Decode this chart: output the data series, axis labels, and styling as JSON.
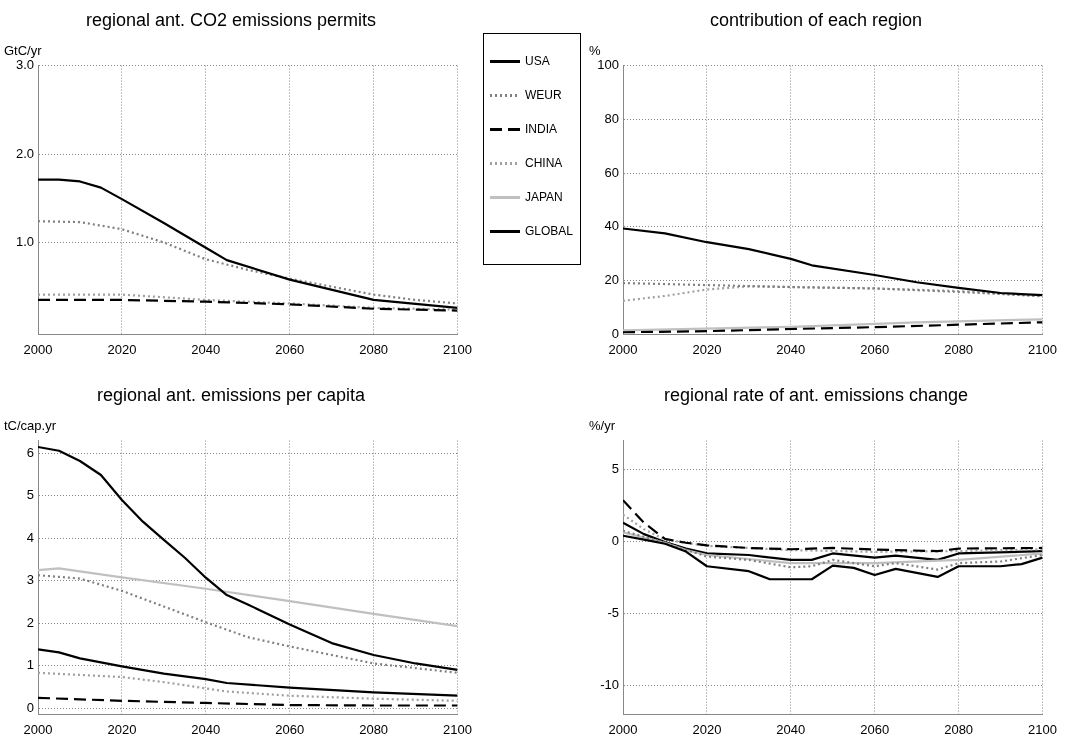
{
  "chart_data": [
    {
      "type": "line",
      "title": "regional ant. CO2 emissions permits",
      "ylabel": "GtC/yr",
      "xlim": [
        2000,
        2100
      ],
      "xticks": [
        2000,
        2020,
        2040,
        2060,
        2080,
        2100
      ],
      "ylim": [
        -0.04,
        3
      ],
      "yticks": [
        {
          "value": 1,
          "label": "1.0"
        },
        {
          "value": 2,
          "label": "2.0"
        },
        {
          "value": 3,
          "label": "3.0"
        }
      ],
      "grid": true,
      "series": [
        {
          "color": "#000000",
          "line_style": "solid",
          "x": [
            2000,
            2005,
            2010,
            2015,
            2020,
            2030,
            2040,
            2045,
            2060,
            2080,
            2100
          ],
          "values": [
            1.71,
            1.71,
            1.69,
            1.62,
            1.49,
            1.22,
            0.94,
            0.8,
            0.58,
            0.35,
            0.26
          ]
        },
        {
          "color": "#808080",
          "line_style": "dotted",
          "x": [
            2000,
            2010,
            2020,
            2030,
            2040,
            2050,
            2060,
            2070,
            2080,
            2090,
            2100
          ],
          "values": [
            1.24,
            1.23,
            1.15,
            1.0,
            0.81,
            0.69,
            0.59,
            0.5,
            0.41,
            0.35,
            0.31
          ]
        },
        {
          "color": "#000000",
          "line_style": "dashed",
          "x": [
            2000,
            2020,
            2040,
            2060,
            2080,
            2100
          ],
          "values": [
            0.35,
            0.35,
            0.33,
            0.3,
            0.25,
            0.23
          ]
        },
        {
          "color": "#a0a0a0",
          "line_style": "dotted",
          "x": [
            2000,
            2020,
            2040,
            2060,
            2080,
            2100
          ],
          "values": [
            0.41,
            0.41,
            0.35,
            0.31,
            0.26,
            0.24
          ]
        }
      ]
    },
    {
      "type": "line",
      "title": "contribution of each region",
      "ylabel": "%",
      "xlim": [
        2000,
        2100
      ],
      "xticks": [
        2000,
        2020,
        2040,
        2060,
        2080,
        2100
      ],
      "ylim": [
        0,
        100
      ],
      "yticks": [
        0,
        20,
        40,
        60,
        80,
        100
      ],
      "grid": true,
      "series": [
        {
          "color": "#000000",
          "line_style": "solid",
          "x": [
            2000,
            2010,
            2020,
            2030,
            2040,
            2045,
            2060,
            2070,
            2080,
            2090,
            2100
          ],
          "values": [
            39.4,
            37.6,
            34.3,
            31.7,
            28.1,
            25.7,
            22.1,
            19.4,
            17.3,
            15.4,
            14.6
          ]
        },
        {
          "color": "#808080",
          "line_style": "dotted",
          "x": [
            2000,
            2040,
            2060,
            2080,
            2100
          ],
          "values": [
            19.1,
            17.6,
            17.1,
            15.8,
            14.3
          ]
        },
        {
          "color": "#000000",
          "line_style": "dashed",
          "x": [
            2000,
            2020,
            2040,
            2060,
            2080,
            2100
          ],
          "values": [
            0.8,
            1.2,
            2.0,
            2.7,
            3.6,
            4.5
          ]
        },
        {
          "color": "#a0a0a0",
          "line_style": "dotted",
          "x": [
            2000,
            2010,
            2020,
            2030,
            2060,
            2080,
            2100
          ],
          "values": [
            12.5,
            14.3,
            16.7,
            17.9,
            17.1,
            16.1,
            14.1
          ]
        },
        {
          "color": "#c0c0c0",
          "line_style": "solid",
          "x": [
            2000,
            2040,
            2070,
            2100
          ],
          "values": [
            1.5,
            2.8,
            4.5,
            5.6
          ]
        }
      ]
    },
    {
      "type": "line",
      "title": "regional ant. emissions per capita",
      "ylabel": "tC/cap.yr",
      "xlim": [
        2000,
        2100
      ],
      "xticks": [
        2000,
        2020,
        2040,
        2060,
        2080,
        2100
      ],
      "ylim": [
        -0.15,
        6.3
      ],
      "yticks": [
        0,
        1,
        2,
        3,
        4,
        5,
        6
      ],
      "grid": true,
      "legend": "top right",
      "series": [
        {
          "name": "USA",
          "color": "#000000",
          "line_style": "solid",
          "x": [
            2000,
            2005,
            2010,
            2015,
            2020,
            2025,
            2030,
            2035,
            2040,
            2045,
            2050,
            2060,
            2070,
            2080,
            2090,
            2100
          ],
          "values": [
            6.15,
            6.06,
            5.82,
            5.49,
            4.9,
            4.39,
            3.96,
            3.54,
            3.07,
            2.66,
            2.44,
            1.97,
            1.53,
            1.25,
            1.05,
            0.9
          ]
        },
        {
          "name": "WEUR",
          "color": "#808080",
          "line_style": "dotted",
          "x": [
            2000,
            2010,
            2020,
            2030,
            2040,
            2050,
            2060,
            2080,
            2100
          ],
          "values": [
            3.13,
            3.05,
            2.76,
            2.39,
            2.02,
            1.67,
            1.45,
            1.05,
            0.83
          ]
        },
        {
          "name": "INDIA",
          "color": "#000000",
          "line_style": "dashed",
          "x": [
            2000,
            2020,
            2040,
            2060,
            2080,
            2100
          ],
          "values": [
            0.24,
            0.17,
            0.12,
            0.07,
            0.06,
            0.06
          ]
        },
        {
          "name": "CHINA",
          "color": "#a0a0a0",
          "line_style": "dotted",
          "x": [
            2000,
            2020,
            2030,
            2045,
            2060,
            2080,
            2100
          ],
          "values": [
            0.83,
            0.73,
            0.61,
            0.39,
            0.29,
            0.22,
            0.17
          ]
        },
        {
          "name": "JAPAN",
          "color": "#c0c0c0",
          "line_style": "solid",
          "x": [
            2000,
            2005,
            2020,
            2040,
            2060,
            2080,
            2100
          ],
          "values": [
            3.25,
            3.29,
            3.08,
            2.81,
            2.52,
            2.22,
            1.93
          ]
        },
        {
          "name": "GLOBAL",
          "color": "#000000",
          "line_style": "solid",
          "x": [
            2000,
            2005,
            2010,
            2020,
            2030,
            2040,
            2045,
            2060,
            2080,
            2100
          ],
          "values": [
            1.38,
            1.31,
            1.17,
            0.98,
            0.81,
            0.68,
            0.59,
            0.48,
            0.37,
            0.29
          ]
        }
      ]
    },
    {
      "type": "line",
      "title": "regional rate of ant. emissions change",
      "ylabel": "%/yr",
      "xlim": [
        2000,
        2100
      ],
      "xticks": [
        2000,
        2020,
        2040,
        2060,
        2080,
        2100
      ],
      "ylim": [
        -12,
        7
      ],
      "yticks": [
        -10,
        -5,
        0,
        5
      ],
      "grid": true,
      "series": [
        {
          "color": "#000000",
          "line_style": "solid",
          "x": [
            2000,
            2005,
            2010,
            2015,
            2020,
            2030,
            2035,
            2045,
            2050,
            2055,
            2060,
            2065,
            2075,
            2080,
            2090,
            2095,
            2100
          ],
          "values": [
            0.4,
            0.13,
            -0.16,
            -0.7,
            -1.72,
            -2.06,
            -2.62,
            -2.62,
            -1.68,
            -1.83,
            -2.33,
            -1.9,
            -2.46,
            -1.72,
            -1.72,
            -1.57,
            -1.12
          ]
        },
        {
          "color": "#808080",
          "line_style": "dotted",
          "x": [
            2000,
            2010,
            2020,
            2030,
            2040,
            2045,
            2050,
            2060,
            2065,
            2075,
            2080,
            2090,
            2100
          ],
          "values": [
            0.74,
            -0.09,
            -1.05,
            -1.28,
            -1.79,
            -1.72,
            -1.28,
            -1.72,
            -1.5,
            -1.95,
            -1.5,
            -1.39,
            -0.94
          ]
        },
        {
          "color": "#000000",
          "line_style": "dashed",
          "x": [
            2000,
            2005,
            2010,
            2015,
            2020,
            2030,
            2040,
            2050,
            2060,
            2075,
            2080,
            2100
          ],
          "values": [
            2.86,
            1.3,
            0.18,
            -0.09,
            -0.27,
            -0.45,
            -0.54,
            -0.45,
            -0.56,
            -0.67,
            -0.49,
            -0.45
          ]
        },
        {
          "color": "#a0a0a0",
          "line_style": "dotted",
          "x": [
            2000,
            2005,
            2010,
            2020,
            2040,
            2060,
            2080,
            2100
          ],
          "values": [
            1.86,
            0.85,
            0.13,
            -0.31,
            -0.6,
            -0.72,
            -0.67,
            -0.54
          ]
        },
        {
          "color": "#c0c0c0",
          "line_style": "solid",
          "x": [
            2000,
            2010,
            2015,
            2020,
            2040,
            2060,
            2080,
            2100
          ],
          "values": [
            0.63,
            -0.09,
            -0.6,
            -0.94,
            -1.5,
            -1.5,
            -1.28,
            -0.83
          ]
        },
        {
          "color": "#000000",
          "line_style": "solid",
          "x": [
            2000,
            2005,
            2010,
            2015,
            2020,
            2030,
            2040,
            2045,
            2050,
            2060,
            2065,
            2075,
            2080,
            2100
          ],
          "values": [
            1.3,
            0.51,
            -0.04,
            -0.49,
            -0.83,
            -0.94,
            -1.28,
            -1.28,
            -0.83,
            -1.12,
            -0.98,
            -1.28,
            -0.83,
            -0.67
          ]
        }
      ]
    }
  ]
}
